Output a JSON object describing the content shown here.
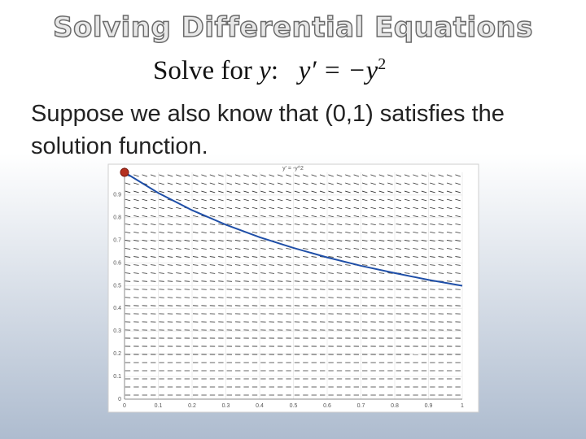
{
  "slide": {
    "title": "Solving Differential Equations",
    "prompt_start": "Solve for ",
    "prompt_var": "y",
    "prompt_end": ":",
    "equation": "y′ = −y",
    "exponent": "2",
    "body": "Suppose we also know that (0,1) satisfies the solution function."
  },
  "chart_data": {
    "type": "line",
    "title": "y' = -y^2",
    "x": [
      0,
      0.1,
      0.2,
      0.3,
      0.4,
      0.5,
      0.6,
      0.7,
      0.8,
      0.9,
      1
    ],
    "series": [
      {
        "color": "#1f4fa8",
        "values": [
          1,
          0.909,
          0.833,
          0.769,
          0.714,
          0.667,
          0.625,
          0.588,
          0.556,
          0.526,
          0.5
        ]
      }
    ],
    "point": {
      "x": 0,
      "y": 1,
      "color": "#b5301f"
    },
    "xlim": [
      0,
      1
    ],
    "ylim": [
      0,
      1
    ],
    "xticks": [
      0,
      0.1,
      0.2,
      0.3,
      0.4,
      0.5,
      0.6,
      0.7,
      0.8,
      0.9,
      1
    ],
    "yticks": [
      0,
      0.1,
      0.2,
      0.3,
      0.4,
      0.5,
      0.6,
      0.7,
      0.8,
      0.9
    ],
    "grid": true
  }
}
